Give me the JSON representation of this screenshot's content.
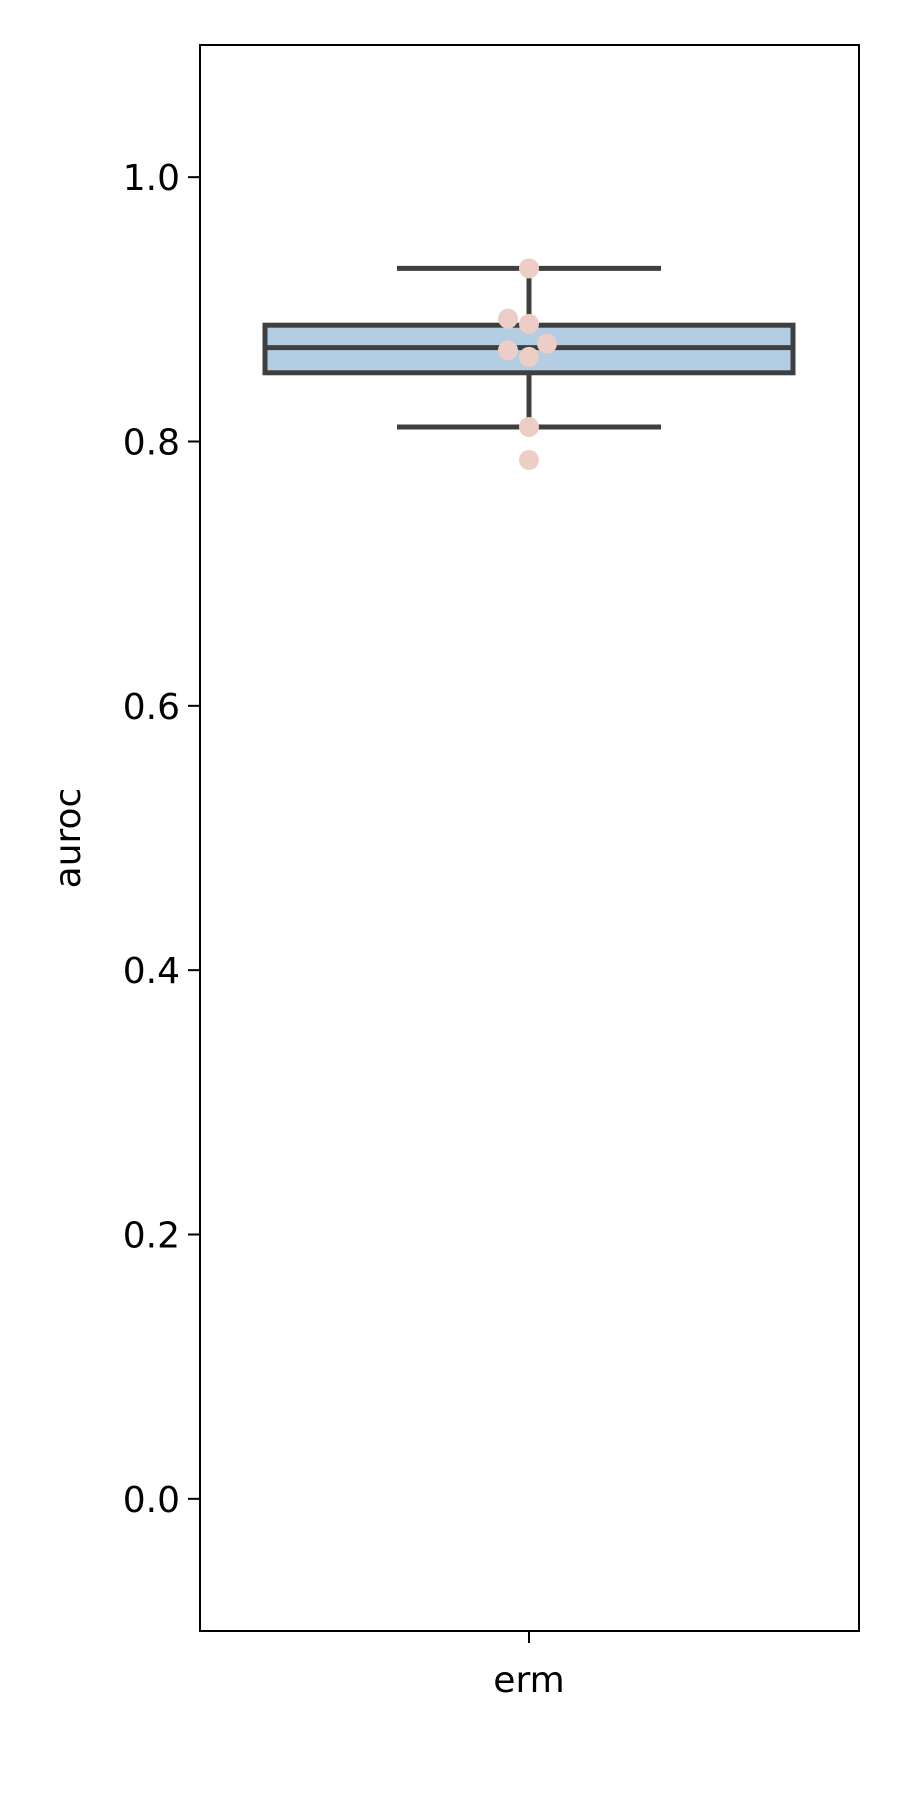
{
  "chart_data": {
    "type": "box",
    "categories": [
      "erm"
    ],
    "xlabel": "",
    "ylabel": "auroc",
    "ylim": [
      -0.1,
      1.1
    ],
    "yticks": [
      0.0,
      0.2,
      0.4,
      0.6,
      0.8,
      1.0
    ],
    "ytick_labels": [
      "0.0",
      "0.2",
      "0.4",
      "0.6",
      "0.8",
      "1.0"
    ],
    "grid": false,
    "box": {
      "category": "erm",
      "whisker_low": 0.811,
      "q1": 0.852,
      "median": 0.871,
      "q3": 0.888,
      "whisker_high": 0.931
    },
    "points": {
      "category": "erm",
      "values": [
        0.931,
        0.893,
        0.889,
        0.874,
        0.869,
        0.864,
        0.811,
        0.786
      ]
    },
    "colors": {
      "box_fill": "#b3cde3",
      "box_edge": "#3f3f3f",
      "points": "#eccec6"
    }
  }
}
